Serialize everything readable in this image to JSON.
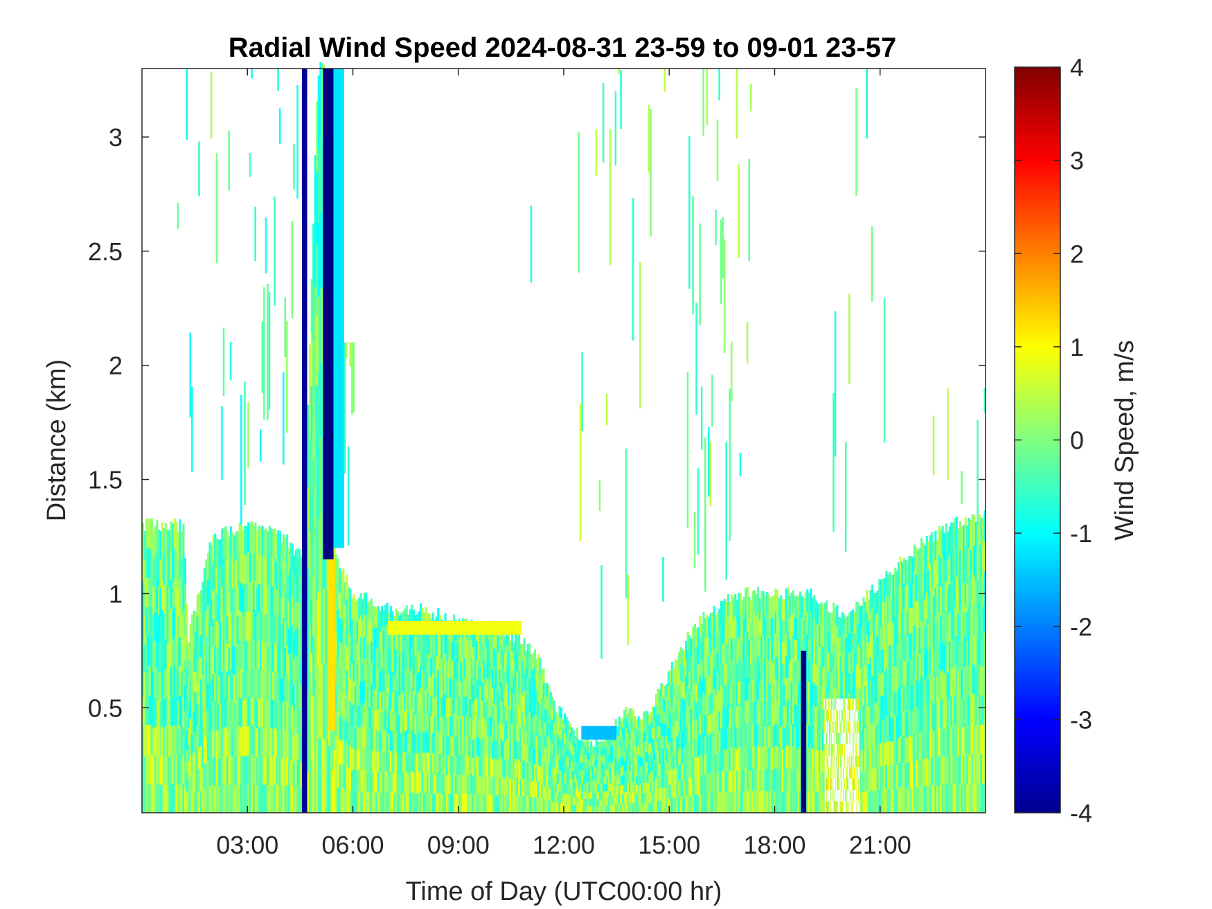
{
  "chart_data": {
    "type": "heatmap",
    "title": "Radial Wind Speed 2024-08-31 23-59 to 09-01 23-57",
    "xlabel": "Time of Day (UTC00:00 hr)",
    "ylabel": "Distance (km)",
    "colorbar_label": "Wind Speed, m/s",
    "xlim": [
      0,
      24
    ],
    "ylim": [
      0.04,
      3.3
    ],
    "clim": [
      -4,
      4
    ],
    "colormap": "jet",
    "x_ticks": [
      3,
      6,
      9,
      12,
      15,
      18,
      21
    ],
    "x_tick_labels": [
      "03:00",
      "06:00",
      "09:00",
      "12:00",
      "15:00",
      "18:00",
      "21:00"
    ],
    "y_ticks": [
      0.5,
      1,
      1.5,
      2,
      2.5,
      3
    ],
    "y_tick_labels": [
      "0.5",
      "1",
      "1.5",
      "2",
      "2.5",
      "3"
    ],
    "colorbar_ticks": [
      4,
      3,
      2,
      1,
      0,
      -1,
      -2,
      -3,
      -4
    ],
    "colorbar_tick_labels": [
      "4",
      "3",
      "2",
      "1",
      "0",
      "-1",
      "-2",
      "-3",
      "-4"
    ],
    "time_bin_hours": 0.05,
    "grid": false,
    "signal_top_profile": {
      "x": [
        0,
        1.2,
        1.3,
        2,
        3,
        4,
        4.6,
        5.0,
        5.3,
        5.5,
        6,
        7,
        8,
        9,
        10,
        10.8,
        11.3,
        11.8,
        12.3,
        12.8,
        13.3,
        13.8,
        14.3,
        15,
        15.5,
        16,
        17,
        18,
        19,
        20,
        21,
        22,
        23,
        24
      ],
      "top_km": [
        1.3,
        1.3,
        0.8,
        1.25,
        1.3,
        1.25,
        1.15,
        3.3,
        3.3,
        1.15,
        1.0,
        0.93,
        0.93,
        0.88,
        0.85,
        0.8,
        0.7,
        0.5,
        0.4,
        0.35,
        0.38,
        0.5,
        0.45,
        0.65,
        0.8,
        0.9,
        1.0,
        1.0,
        1.0,
        0.9,
        1.05,
        1.2,
        1.3,
        1.35
      ],
      "typical_speed": -0.2
    },
    "notable_bands": [
      {
        "x0": 4.55,
        "x1": 4.7,
        "bottom_km": 0.04,
        "top_km": 3.3,
        "speed": -3.8
      },
      {
        "x0": 5.15,
        "x1": 5.45,
        "bottom_km": 1.15,
        "top_km": 3.3,
        "speed": -4.0
      },
      {
        "x0": 5.3,
        "x1": 5.5,
        "bottom_km": 0.4,
        "top_km": 1.15,
        "speed": 1.2
      },
      {
        "x0": 5.45,
        "x1": 5.75,
        "bottom_km": 1.2,
        "top_km": 3.3,
        "speed": -1.2
      },
      {
        "x0": 18.75,
        "x1": 18.9,
        "bottom_km": 0.04,
        "top_km": 0.75,
        "speed": -4.0
      },
      {
        "x0": 7.0,
        "x1": 10.8,
        "bottom_km": 0.82,
        "top_km": 0.88,
        "speed": 0.9
      },
      {
        "x0": 12.5,
        "x1": 13.5,
        "bottom_km": 0.36,
        "top_km": 0.42,
        "speed": -1.5
      }
    ],
    "upper_clusters": [
      {
        "x0": 1.0,
        "x1": 2.6,
        "bottom_km": 1.3,
        "top_km": 3.3,
        "density": 0.18,
        "speed": -0.3
      },
      {
        "x0": 2.8,
        "x1": 4.5,
        "bottom_km": 1.3,
        "top_km": 3.3,
        "density": 0.32,
        "speed": -0.4
      },
      {
        "x0": 5.6,
        "x1": 6.0,
        "bottom_km": 1.2,
        "top_km": 2.1,
        "density": 0.6,
        "speed": -0.1
      },
      {
        "x0": 11.0,
        "x1": 11.8,
        "bottom_km": 1.5,
        "top_km": 2.7,
        "density": 0.1,
        "speed": -0.2
      },
      {
        "x0": 12.3,
        "x1": 15.0,
        "bottom_km": 0.6,
        "top_km": 3.3,
        "density": 0.18,
        "speed": -0.1
      },
      {
        "x0": 15.3,
        "x1": 17.4,
        "bottom_km": 1.0,
        "top_km": 3.3,
        "density": 0.3,
        "speed": -0.2
      },
      {
        "x0": 19.6,
        "x1": 21.3,
        "bottom_km": 1.0,
        "top_km": 3.3,
        "density": 0.14,
        "speed": -0.3
      },
      {
        "x0": 22.5,
        "x1": 24.0,
        "bottom_km": 1.2,
        "top_km": 1.9,
        "density": 0.15,
        "speed": -0.1
      }
    ],
    "sparse_areas": [
      {
        "x0": 19.4,
        "x1": 20.4,
        "bottom_km": 0.04,
        "top_km": 0.5,
        "density": 0.45,
        "speed": 0.6
      }
    ]
  }
}
